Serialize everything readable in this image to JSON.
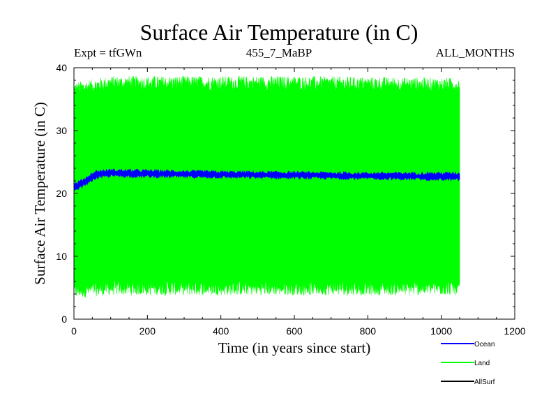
{
  "chart_data": {
    "type": "area",
    "title": "Surface Air Temperature (in C)",
    "experiment_label": "Expt = tfGWn",
    "subtitle_center": "455_7_MaBP",
    "subtitle_right": "ALL_MONTHS",
    "xlabel": "Time (in years since start)",
    "ylabel": "Surface Air Temperature (in C)",
    "xlim": [
      0,
      1200
    ],
    "ylim": [
      0,
      40
    ],
    "xticks": [
      0,
      200,
      400,
      600,
      800,
      1000,
      1200
    ],
    "yticks": [
      0,
      10,
      20,
      30,
      40
    ],
    "x_end": 1050,
    "series": [
      {
        "name": "Land",
        "color": "#00ff00",
        "style": "band",
        "description_points": [
          {
            "x": 0,
            "low": 4.5,
            "high": 36.5
          },
          {
            "x": 100,
            "low": 5.0,
            "high": 37.5
          },
          {
            "x": 300,
            "low": 5.0,
            "high": 37.5
          },
          {
            "x": 600,
            "low": 5.0,
            "high": 37.5
          },
          {
            "x": 900,
            "low": 5.0,
            "high": 37.3
          },
          {
            "x": 1050,
            "low": 5.0,
            "high": 37.2
          }
        ]
      },
      {
        "name": "Ocean",
        "color": "#0000ff",
        "style": "band",
        "description_points": [
          {
            "x": 0,
            "low": 20.3,
            "high": 21.4
          },
          {
            "x": 30,
            "low": 21.4,
            "high": 22.4
          },
          {
            "x": 60,
            "low": 22.5,
            "high": 23.5
          },
          {
            "x": 100,
            "low": 22.8,
            "high": 23.7
          },
          {
            "x": 200,
            "low": 22.7,
            "high": 23.6
          },
          {
            "x": 400,
            "low": 22.6,
            "high": 23.4
          },
          {
            "x": 600,
            "low": 22.5,
            "high": 23.3
          },
          {
            "x": 800,
            "low": 22.4,
            "high": 23.2
          },
          {
            "x": 1050,
            "low": 22.2,
            "high": 23.2
          }
        ]
      },
      {
        "name": "AllSurf",
        "color": "#000000",
        "style": "line",
        "description_points": []
      }
    ],
    "legend": [
      {
        "label": "Ocean",
        "color": "#0000ff"
      },
      {
        "label": "Land",
        "color": "#00ff00"
      },
      {
        "label": "AllSurf",
        "color": "#000000"
      }
    ],
    "legend_position": "bottom-right"
  }
}
